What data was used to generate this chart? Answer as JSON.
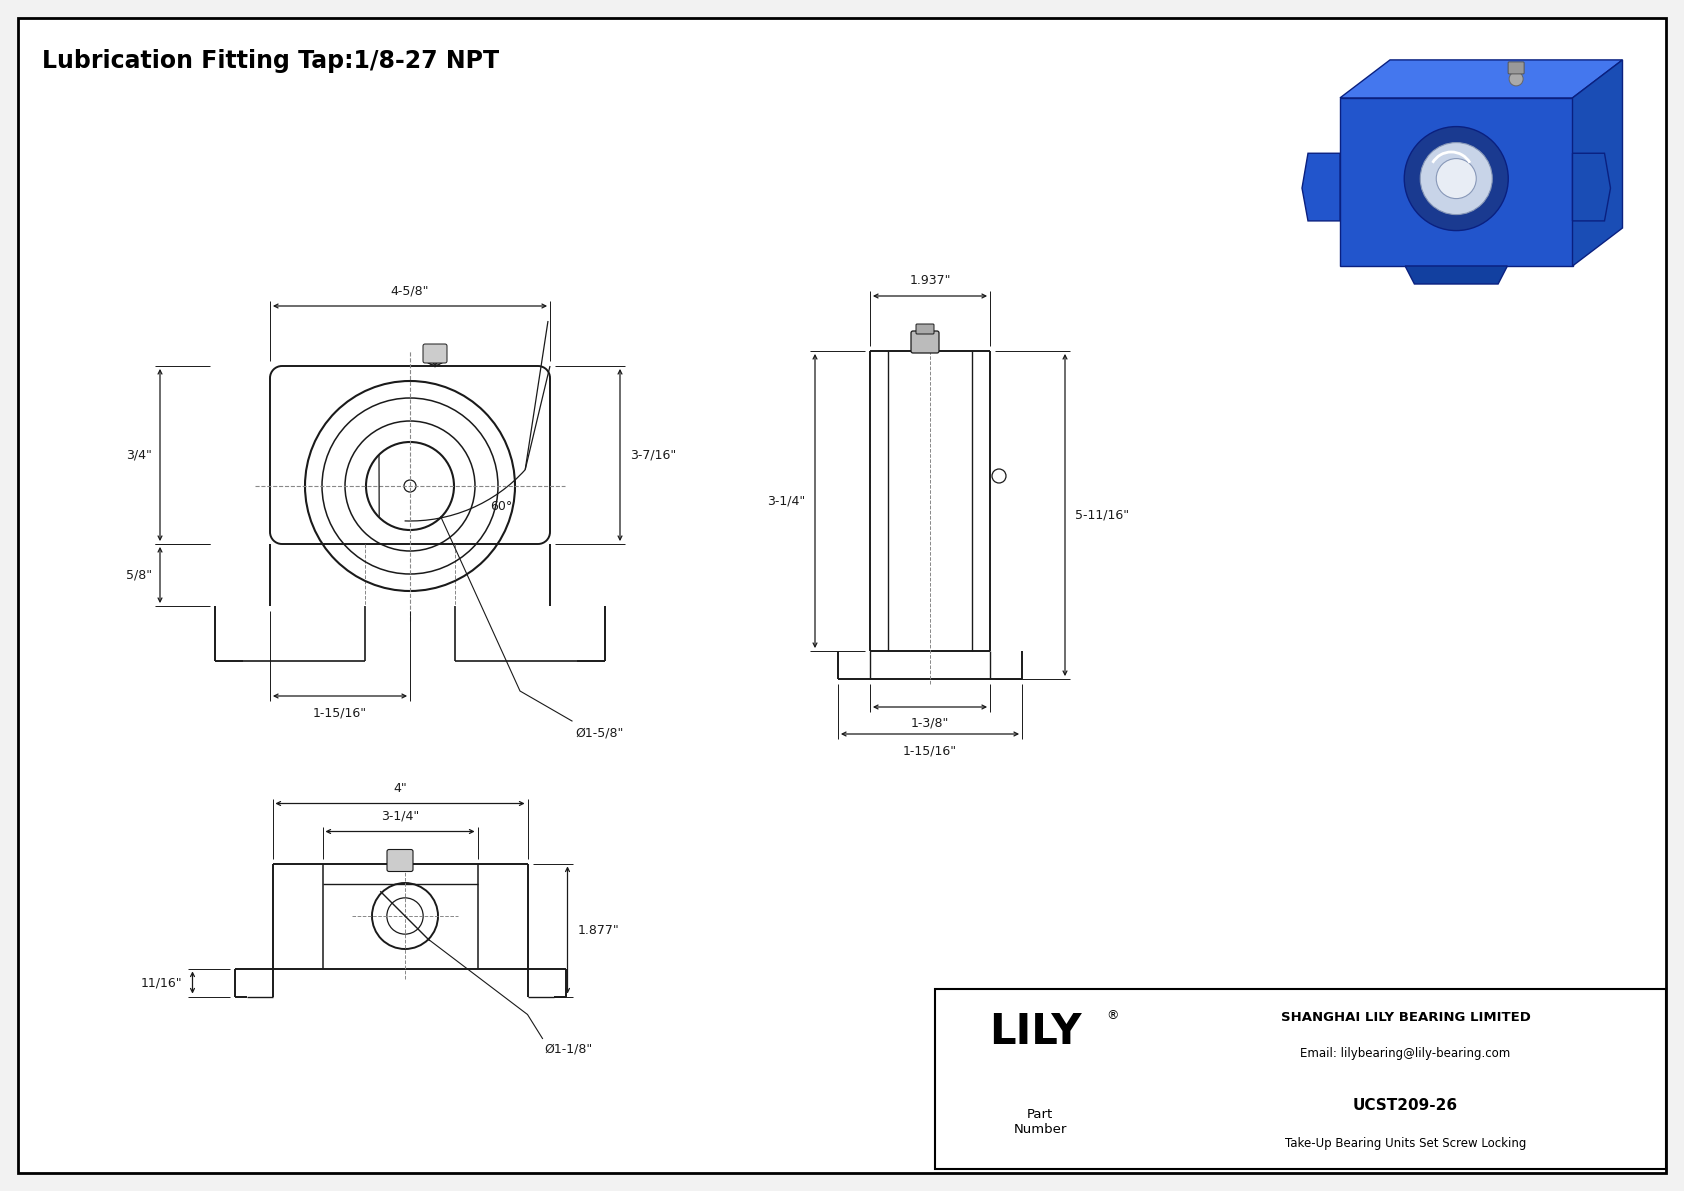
{
  "title": "Lubrication Fitting Tap:1/8-27 NPT",
  "bg_color": "#ffffff",
  "border_color": "#000000",
  "line_color": "#1a1a1a",
  "dim_color": "#1a1a1a",
  "company_name": "SHANGHAI LILY BEARING LIMITED",
  "company_email": "Email: lilybearing@lily-bearing.com",
  "part_label": "Part\nNumber",
  "part_number": "UCST209-26",
  "part_desc": "Take-Up Bearing Units Set Screw Locking",
  "lily_text": "LILY",
  "dims": {
    "front_width": "4-5/8\"",
    "front_height_right": "3-7/16\"",
    "front_slot_height": "3/4\"",
    "front_slot_depth": "5/8\"",
    "front_bore": "1-15/16\"",
    "front_dia": "Ø1-5/8\"",
    "front_angle": "60°",
    "side_width_top": "1.937\"",
    "side_height": "3-1/4\"",
    "side_total_height": "5-11/16\"",
    "side_slot_width1": "1-3/8\"",
    "side_slot_width2": "1-15/16\"",
    "bottom_total": "4\"",
    "bottom_inner": "3-1/4\"",
    "bottom_right": "1.877\"",
    "bottom_dia": "Ø1-1/8\"",
    "bottom_left_dim": "11/16\""
  }
}
